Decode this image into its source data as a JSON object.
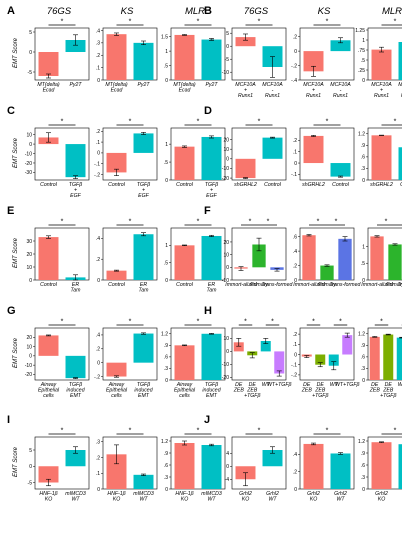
{
  "colors": {
    "red": "#F8766D",
    "cyan": "#00BFC4",
    "green": "#2CB42C",
    "blue": "#5B74E4",
    "violet": "#C77CFF",
    "lime": "#7CAE00"
  },
  "figure": {
    "ylabel": "EMT Score",
    "panels": [
      {
        "letter": "A",
        "headers": [
          "76GS",
          "KS",
          "MLR"
        ]
      },
      {
        "letter": "B",
        "headers": [
          "76GS",
          "KS",
          "MLR"
        ]
      },
      {
        "letter": "C",
        "headers": []
      },
      {
        "letter": "D",
        "headers": []
      },
      {
        "letter": "E",
        "headers": []
      },
      {
        "letter": "F",
        "headers": []
      },
      {
        "letter": "G",
        "headers": []
      },
      {
        "letter": "H",
        "headers": []
      },
      {
        "letter": "I",
        "headers": []
      },
      {
        "letter": "J",
        "headers": []
      }
    ]
  },
  "chart_data": [
    {
      "panel": "A",
      "subplot": "76GS",
      "type": "bar",
      "categories": [
        "MT(delta) Ecad",
        "Py2T"
      ],
      "values": [
        -6,
        3
      ],
      "errors": [
        0.5,
        1.3
      ],
      "ylim": [
        -7,
        6
      ],
      "yticks": [
        -5,
        0,
        5
      ],
      "significance": "*"
    },
    {
      "panel": "A",
      "subplot": "KS",
      "type": "bar",
      "categories": [
        "MT(delta) Ecad",
        "Py2T"
      ],
      "values": [
        0.37,
        0.3
      ],
      "errors": [
        0.01,
        0.015
      ],
      "ylim": [
        0,
        0.42
      ],
      "yticks": [
        0,
        0.1,
        0.2,
        0.3,
        0.4
      ],
      "significance": "*"
    },
    {
      "panel": "A",
      "subplot": "MLR",
      "type": "bar",
      "categories": [
        "MT(delta) Ecad",
        "Py2T"
      ],
      "values": [
        1.56,
        1.4
      ],
      "errors": [
        0.015,
        0.03
      ],
      "ylim": [
        0,
        1.8
      ],
      "yticks": [
        0,
        0.5,
        1.0,
        1.5
      ],
      "significance": "*"
    },
    {
      "panel": "B",
      "subplot": "76GS",
      "type": "bar",
      "categories": [
        "MCF10A + Runx1",
        "MCF10A - Runx1"
      ],
      "values": [
        3.5,
        -8
      ],
      "errors": [
        1.2,
        4
      ],
      "ylim": [
        -13,
        7
      ],
      "yticks": [
        -10,
        -5,
        0,
        5
      ],
      "significance": "*"
    },
    {
      "panel": "B",
      "subplot": "KS",
      "type": "bar",
      "categories": [
        "MCF10A + Runx1",
        "MCF10A - Runx1"
      ],
      "values": [
        -0.28,
        0.15
      ],
      "errors": [
        0.07,
        0.035
      ],
      "ylim": [
        -0.4,
        0.32
      ],
      "yticks": [
        -0.4,
        -0.2,
        0,
        0.2
      ],
      "significance": "*"
    },
    {
      "panel": "B",
      "subplot": "MLR",
      "type": "bar",
      "categories": [
        "MCF10A + Runx1",
        "MCF10A - Runx1"
      ],
      "values": [
        0.76,
        0.95
      ],
      "errors": [
        0.06,
        0.1
      ],
      "ylim": [
        0,
        1.3
      ],
      "yticks": [
        0,
        0.25,
        0.5,
        0.75,
        1.0,
        1.25
      ],
      "significance": "*"
    },
    {
      "panel": "C",
      "subplot": "76GS",
      "type": "bar",
      "categories": [
        "Control",
        "TGFβ + EGF"
      ],
      "values": [
        7,
        -35
      ],
      "errors": [
        5,
        1.5
      ],
      "ylim": [
        -38,
        17
      ],
      "yticks": [
        -30,
        -20,
        -10,
        0,
        10
      ],
      "significance": "*"
    },
    {
      "panel": "C",
      "subplot": "KS",
      "type": "bar",
      "categories": [
        "Control",
        "TGFβ + EGF"
      ],
      "values": [
        -0.18,
        0.18
      ],
      "errors": [
        0.03,
        0.01
      ],
      "ylim": [
        -0.25,
        0.23
      ],
      "yticks": [
        -0.2,
        -0.1,
        0,
        0.1,
        0.2
      ],
      "significance": "*"
    },
    {
      "panel": "C",
      "subplot": "MLR",
      "type": "bar",
      "categories": [
        "Control",
        "TGFβ + EGF"
      ],
      "values": [
        0.93,
        1.2
      ],
      "errors": [
        0.02,
        0.03
      ],
      "ylim": [
        0,
        1.45
      ],
      "yticks": [
        0,
        0.5,
        1.0
      ],
      "significance": "*"
    },
    {
      "panel": "D",
      "subplot": "76GS",
      "type": "bar",
      "categories": [
        "shGRHL2",
        "Control"
      ],
      "values": [
        -20,
        22
      ],
      "errors": [
        0.5,
        0.5
      ],
      "ylim": [
        -22,
        32
      ],
      "yticks": [
        -20,
        -10,
        0,
        10,
        20
      ],
      "significance": "*"
    },
    {
      "panel": "D",
      "subplot": "KS",
      "type": "bar",
      "categories": [
        "shGRHL2",
        "Control"
      ],
      "values": [
        0.24,
        -0.12
      ],
      "errors": [
        0.005,
        0.005
      ],
      "ylim": [
        -0.15,
        0.31
      ],
      "yticks": [
        -0.1,
        0,
        0.1,
        0.2
      ],
      "significance": "*"
    },
    {
      "panel": "D",
      "subplot": "MLR",
      "type": "bar",
      "categories": [
        "shGRHL2",
        "Control"
      ],
      "values": [
        1.16,
        0.85
      ],
      "errors": [
        0.005,
        0.005
      ],
      "ylim": [
        0,
        1.35
      ],
      "yticks": [
        0,
        0.3,
        0.6,
        0.9,
        1.2
      ],
      "significance": "*"
    },
    {
      "panel": "E",
      "subplot": "76GS",
      "type": "bar",
      "categories": [
        "Control",
        "ER Tam"
      ],
      "values": [
        33,
        2
      ],
      "errors": [
        1,
        2
      ],
      "ylim": [
        0,
        40
      ],
      "yticks": [
        0,
        10,
        20,
        30
      ],
      "significance": "*"
    },
    {
      "panel": "E",
      "subplot": "KS",
      "type": "bar",
      "categories": [
        "Control",
        "ER Tam"
      ],
      "values": [
        0.09,
        0.44
      ],
      "errors": [
        0.005,
        0.015
      ],
      "ylim": [
        0,
        0.5
      ],
      "yticks": [
        0,
        0.2,
        0.4
      ],
      "significance": "*"
    },
    {
      "panel": "E",
      "subplot": "MLR",
      "type": "bar",
      "categories": [
        "Control",
        "ER Tam"
      ],
      "values": [
        1.0,
        1.27
      ],
      "errors": [
        0.01,
        0.02
      ],
      "ylim": [
        0,
        1.5
      ],
      "yticks": [
        0,
        0.5,
        1.0
      ],
      "significance": "*"
    },
    {
      "panel": "F",
      "subplot": "76GS",
      "type": "bar",
      "categories": [
        "Immort-alized",
        "Primary",
        "Trans-formed"
      ],
      "values": [
        -1,
        18,
        -2
      ],
      "errors": [
        1.5,
        5,
        1
      ],
      "ylim": [
        -10,
        31
      ],
      "yticks": [
        -10,
        0,
        10,
        20
      ],
      "significance": "*"
    },
    {
      "panel": "F",
      "subplot": "KS",
      "type": "bar",
      "categories": [
        "Immort-alized",
        "Primary",
        "Trans-formed"
      ],
      "values": [
        0.62,
        0.2,
        0.57
      ],
      "errors": [
        0.01,
        0.01,
        0.03
      ],
      "ylim": [
        0,
        0.72
      ],
      "yticks": [
        0,
        0.2,
        0.4,
        0.6
      ],
      "significance": "*"
    },
    {
      "panel": "F",
      "subplot": "MLR",
      "type": "bar",
      "categories": [
        "Immort-alized",
        "Primary",
        "Trans-formed"
      ],
      "values": [
        1.3,
        1.06,
        1.12
      ],
      "errors": [
        0.02,
        0.02,
        0.02
      ],
      "ylim": [
        0,
        1.55
      ],
      "yticks": [
        0,
        0.5,
        1.0
      ],
      "significance": "*"
    },
    {
      "panel": "G",
      "subplot": "76GS",
      "type": "bar",
      "categories": [
        "Airway Epithelial cells",
        "TGFβ induced EMT"
      ],
      "values": [
        22,
        -24
      ],
      "errors": [
        0.5,
        0.5
      ],
      "ylim": [
        -26,
        30
      ],
      "yticks": [
        -20,
        -10,
        0,
        10,
        20
      ],
      "significance": "*"
    },
    {
      "panel": "G",
      "subplot": "KS",
      "type": "bar",
      "categories": [
        "Airway Epithelial cells",
        "TGFβ induced EMT"
      ],
      "values": [
        -0.2,
        0.42
      ],
      "errors": [
        0.01,
        0.01
      ],
      "ylim": [
        -0.25,
        0.5
      ],
      "yticks": [
        -0.2,
        0,
        0.2,
        0.4
      ],
      "significance": "*"
    },
    {
      "panel": "G",
      "subplot": "MLR",
      "type": "bar",
      "categories": [
        "Airway Epithelial cells",
        "TGFβ induced EMT"
      ],
      "values": [
        0.9,
        1.2
      ],
      "errors": [
        0.01,
        0.01
      ],
      "ylim": [
        0,
        1.35
      ],
      "yticks": [
        0,
        0.3,
        0.6,
        0.9,
        1.2
      ],
      "significance": "*"
    },
    {
      "panel": "H",
      "subplot": "76GS",
      "type": "bar",
      "categories": [
        "DE ZEB",
        "DE ZEB +TGFβ",
        "WT",
        "WT+TGFβ"
      ],
      "values": [
        7,
        -3,
        8,
        -17
      ],
      "errors": [
        3,
        2,
        2,
        2
      ],
      "ylim": [
        -22,
        18
      ],
      "yticks": [
        -20,
        -10,
        0,
        10
      ],
      "significance": "*"
    },
    {
      "panel": "H",
      "subplot": "KS",
      "type": "bar",
      "categories": [
        "DE ZEB",
        "DE ZEB +TGFβ",
        "WT",
        "WT+TGFβ"
      ],
      "values": [
        -0.02,
        -0.1,
        -0.11,
        0.19
      ],
      "errors": [
        0.01,
        0.02,
        0.04,
        0.02
      ],
      "ylim": [
        -0.25,
        0.26
      ],
      "yticks": [
        -0.2,
        -0.1,
        0,
        0.1,
        0.2
      ],
      "significance": "*"
    },
    {
      "panel": "H",
      "subplot": "MLR",
      "type": "bar",
      "categories": [
        "DE ZEB",
        "DE ZEB +TGFβ",
        "WT",
        "WT+TGFβ"
      ],
      "values": [
        1.12,
        1.18,
        1.1,
        1.23
      ],
      "errors": [
        0.01,
        0.01,
        0.01,
        0.01
      ],
      "ylim": [
        0,
        1.35
      ],
      "yticks": [
        0,
        0.3,
        0.6,
        0.9,
        1.2
      ],
      "significance": "*"
    },
    {
      "panel": "I",
      "subplot": "76GS",
      "type": "bar",
      "categories": [
        "HNF-1β KO",
        "mIMCD3 WT"
      ],
      "values": [
        -5,
        5
      ],
      "errors": [
        1,
        1
      ],
      "ylim": [
        -7,
        9
      ],
      "yticks": [
        -5,
        0,
        5
      ],
      "significance": "*"
    },
    {
      "panel": "I",
      "subplot": "KS",
      "type": "bar",
      "categories": [
        "HNF-1β KO",
        "mIMCD3 WT"
      ],
      "values": [
        0.22,
        0.09
      ],
      "errors": [
        0.06,
        0.005
      ],
      "ylim": [
        0,
        0.33
      ],
      "yticks": [
        0,
        0.1,
        0.2,
        0.3
      ],
      "significance": "*"
    },
    {
      "panel": "I",
      "subplot": "MLR",
      "type": "bar",
      "categories": [
        "HNF-1β KO",
        "mIMCD3 WT"
      ],
      "values": [
        1.15,
        1.1
      ],
      "errors": [
        0.05,
        0.02
      ],
      "ylim": [
        0,
        1.3
      ],
      "yticks": [
        0,
        0.3,
        0.6,
        0.9,
        1.2
      ],
      "significance": "*"
    },
    {
      "panel": "J",
      "subplot": "76GS",
      "type": "bar",
      "categories": [
        "Grhl2 KO",
        "Grhl2 WT"
      ],
      "values": [
        -4,
        5
      ],
      "errors": [
        2,
        1
      ],
      "ylim": [
        -7,
        9
      ],
      "yticks": [
        -4,
        0,
        4
      ],
      "significance": "*"
    },
    {
      "panel": "J",
      "subplot": "KS",
      "type": "bar",
      "categories": [
        "Grhl2 KO",
        "Grhl2 WT"
      ],
      "values": [
        0.52,
        0.41
      ],
      "errors": [
        0.01,
        0.01
      ],
      "ylim": [
        0,
        0.6
      ],
      "yticks": [
        0,
        0.2,
        0.4
      ],
      "significance": "*"
    },
    {
      "panel": "J",
      "subplot": "MLR",
      "type": "bar",
      "categories": [
        "Grhl2 KO",
        "Grhl2 WT"
      ],
      "values": [
        1.17,
        1.12
      ],
      "errors": [
        0.01,
        0.01
      ],
      "ylim": [
        0,
        1.3
      ],
      "yticks": [
        0,
        0.3,
        0.6,
        0.9,
        1.2
      ],
      "significance": "*"
    }
  ]
}
